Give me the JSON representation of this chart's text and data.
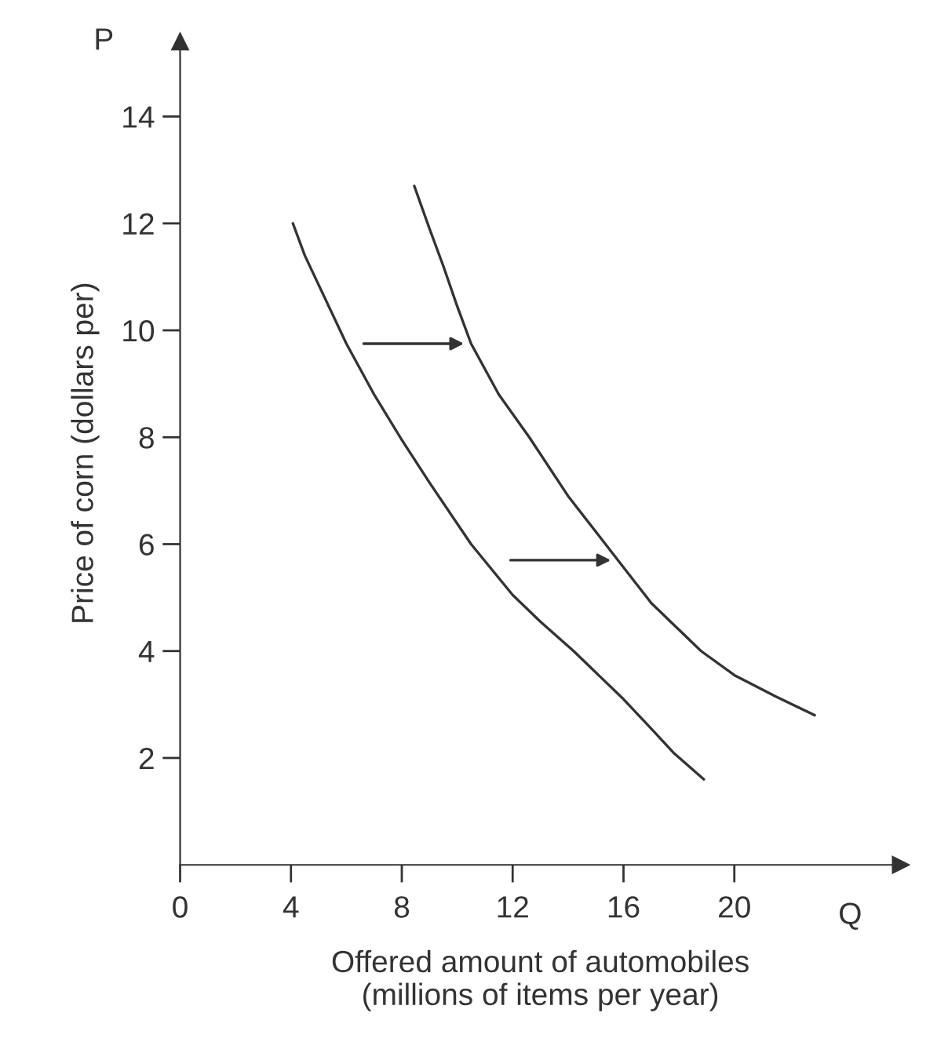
{
  "chart_data": {
    "type": "line",
    "xlabel": "Offered amount of automobiles\n(millions of items per year)",
    "ylabel": "Price of corn (dollars per)",
    "annotations": [
      "P",
      "Q"
    ],
    "series": [
      {
        "color": "#333333",
        "x": [
          4.07,
          4.5,
          5,
          6,
          7,
          8,
          9,
          10.5,
          12,
          13,
          14.2,
          15,
          16,
          17,
          17.8,
          18.9
        ],
        "values": [
          12.0,
          11.4,
          10.85,
          9.75,
          8.8,
          7.95,
          7.15,
          6.0,
          5.05,
          4.55,
          4.0,
          3.6,
          3.1,
          2.55,
          2.1,
          1.6
        ]
      },
      {
        "color": "#333333",
        "x": [
          8.45,
          9,
          9.5,
          10,
          10.5,
          11.5,
          12.6,
          14,
          15.35,
          15.8,
          17,
          18.8,
          20,
          21.5,
          22.9
        ],
        "values": [
          12.7,
          11.9,
          11.2,
          10.45,
          9.75,
          8.8,
          8.0,
          6.9,
          6.0,
          5.7,
          4.9,
          4.0,
          3.55,
          3.15,
          2.8
        ]
      }
    ],
    "xlim": [
      0,
      26
    ],
    "ylim": [
      0,
      15.4
    ],
    "xticks": [
      0,
      4,
      8,
      12,
      16,
      20
    ],
    "yticks": [
      2,
      4,
      6,
      8,
      10,
      12,
      14
    ],
    "grid": false,
    "legend": false,
    "marker": "none",
    "line_style": "solid"
  }
}
